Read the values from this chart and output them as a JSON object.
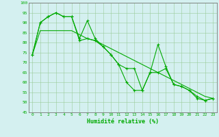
{
  "x": [
    0,
    1,
    2,
    3,
    4,
    5,
    6,
    7,
    8,
    9,
    10,
    11,
    12,
    13,
    14,
    15,
    16,
    17,
    18,
    19,
    20,
    21,
    22,
    23
  ],
  "line1": [
    74,
    90,
    93,
    95,
    93,
    93,
    82,
    91,
    82,
    78,
    74,
    69,
    60,
    56,
    56,
    65,
    79,
    68,
    59,
    58,
    56,
    52,
    51,
    52
  ],
  "line2": [
    74,
    90,
    93,
    95,
    93,
    93,
    81,
    82,
    81,
    78,
    74,
    69,
    67,
    67,
    56,
    65,
    65,
    67,
    59,
    58,
    56,
    53,
    51,
    52
  ],
  "line3": [
    74,
    86,
    86,
    86,
    86,
    86,
    84,
    82,
    81,
    79,
    77,
    75,
    73,
    71,
    69,
    67,
    65,
    63,
    61,
    59,
    57,
    55,
    53,
    52
  ],
  "color": "#00aa00",
  "bg_color": "#d4f0f0",
  "grid_color": "#99cc99",
  "xlabel": "Humidité relative (%)",
  "ylim": [
    45,
    100
  ],
  "yticks": [
    45,
    50,
    55,
    60,
    65,
    70,
    75,
    80,
    85,
    90,
    95,
    100
  ]
}
